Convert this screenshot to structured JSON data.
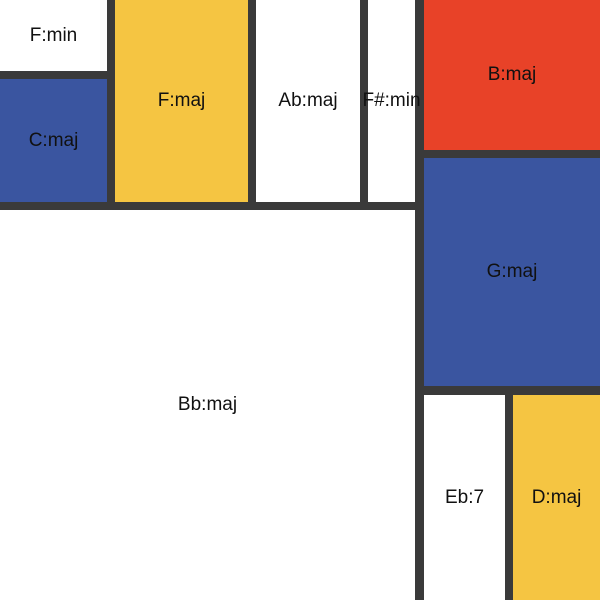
{
  "colors": {
    "grid_lines": "#3a3a3a",
    "white": "#ffffff",
    "blue": "#3a55a0",
    "yellow": "#f5c542",
    "red": "#e84228"
  },
  "cells": {
    "f_min": {
      "label": "F:min",
      "color": "white"
    },
    "c_maj": {
      "label": "C:maj",
      "color": "blue"
    },
    "f_maj": {
      "label": "F:maj",
      "color": "yellow"
    },
    "ab_maj": {
      "label": "Ab:maj",
      "color": "white"
    },
    "fsharp_min": {
      "label": "F#:min",
      "color": "white"
    },
    "b_maj": {
      "label": "B:maj",
      "color": "red"
    },
    "g_maj": {
      "label": "G:maj",
      "color": "blue"
    },
    "bb_maj": {
      "label": "Bb:maj",
      "color": "white"
    },
    "eb_7": {
      "label": "Eb:7",
      "color": "white"
    },
    "d_maj": {
      "label": "D:maj",
      "color": "yellow"
    }
  }
}
